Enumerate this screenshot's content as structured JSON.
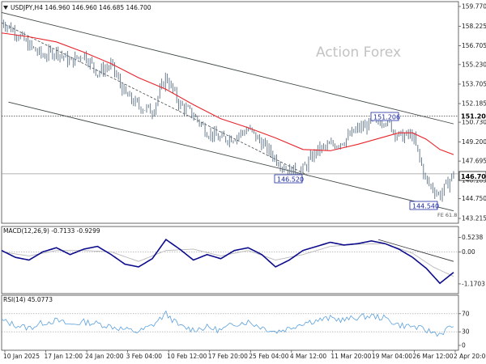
{
  "header": {
    "symbol_line": "USDJPY,H4  146.960 146.960 146.685 146.700",
    "watermark": "Action Forex"
  },
  "annotations": {
    "high_label": "151.206",
    "low1_label": "146.520",
    "low2_label": "144.540",
    "fe_label": "FE 61.8",
    "current_price_tag": "146.700",
    "resistance_tag": "151.200"
  },
  "colors": {
    "price": "#5c7186",
    "ema": "#e8242b",
    "channel": "#404848",
    "macd": "#0c0c8c",
    "signal": "#b9b9b9",
    "rsi": "#5aa0dc",
    "annotation": "#1c2aa0"
  },
  "chart_data": [
    {
      "type": "line",
      "title": "USDJPY,H4",
      "y_ticks": [
        "159.770",
        "158.225",
        "156.705",
        "155.230",
        "153.705",
        "152.185",
        "150.730",
        "149.200",
        "147.695",
        "146.185",
        "144.750",
        "143.215"
      ],
      "x_ticks": [
        "10 Jan 2025",
        "17 Jan 12:00",
        "24 Jan 20:00",
        "3 Feb 04:00",
        "10 Feb 12:00",
        "17 Feb 20:00",
        "25 Feb 04:00",
        "4 Mar 12:00",
        "11 Mar 20:00",
        "19 Mar 04:00",
        "26 Mar 12:00",
        "2 Apr 20:00"
      ],
      "ylim": [
        143.215,
        159.77
      ],
      "series": [
        {
          "name": "USDJPY",
          "x": [
            0,
            4,
            8,
            12,
            16,
            20,
            24,
            28,
            32,
            36,
            40,
            44,
            48,
            52,
            56,
            60,
            64,
            68,
            72,
            76,
            80,
            84,
            88,
            92,
            96,
            100,
            104,
            108,
            112,
            116,
            120,
            124,
            128,
            132
          ],
          "values": [
            158.6,
            157.8,
            156.7,
            155.9,
            156.3,
            155.4,
            156.1,
            154.6,
            155.2,
            152.9,
            152.0,
            151.6,
            154.3,
            152.1,
            151.3,
            150.0,
            149.4,
            149.6,
            150.2,
            149.1,
            147.9,
            146.9,
            147.0,
            148.5,
            148.9,
            149.3,
            150.2,
            150.6,
            151.0,
            149.6,
            149.7,
            146.1,
            145.0,
            146.7
          ]
        },
        {
          "name": "EMA",
          "x": [
            0,
            8,
            16,
            24,
            32,
            40,
            48,
            56,
            64,
            72,
            80,
            88,
            96,
            104,
            112,
            116,
            120,
            124,
            128,
            132
          ],
          "values": [
            157.7,
            157.4,
            157.0,
            156.2,
            155.3,
            154.2,
            153.3,
            152.1,
            151.0,
            150.3,
            149.5,
            148.6,
            148.5,
            149.0,
            149.6,
            149.9,
            149.9,
            149.4,
            148.6,
            148.2
          ]
        }
      ],
      "channel": {
        "upper": {
          "x": [
            0,
            132
          ],
          "values": [
            159.3,
            150.6
          ]
        },
        "lower": {
          "x": [
            2,
            132
          ],
          "values": [
            152.3,
            143.8
          ]
        },
        "dashed": {
          "x": [
            0,
            90
          ],
          "values": [
            158.5,
            146.5
          ]
        },
        "horizontal": [
          151.2,
          146.7
        ]
      }
    },
    {
      "type": "line",
      "title": "MACD(12,26,9) -0.7133 -0.9299",
      "y_ticks": [
        "0.5238",
        "0.00",
        "-1.1703"
      ],
      "ylim": [
        -1.35,
        0.75
      ],
      "series": [
        {
          "name": "MACD",
          "x": [
            0,
            4,
            8,
            12,
            16,
            20,
            24,
            28,
            32,
            36,
            40,
            44,
            48,
            52,
            56,
            60,
            64,
            68,
            72,
            76,
            80,
            84,
            88,
            92,
            96,
            100,
            104,
            108,
            112,
            116,
            120,
            124,
            128,
            132
          ],
          "values": [
            0.05,
            -0.2,
            -0.3,
            0.0,
            0.15,
            -0.1,
            0.1,
            0.2,
            -0.1,
            -0.45,
            -0.55,
            -0.25,
            0.45,
            0.1,
            -0.3,
            -0.1,
            -0.25,
            0.05,
            0.15,
            -0.1,
            -0.55,
            -0.3,
            0.05,
            0.2,
            0.35,
            0.25,
            0.3,
            0.4,
            0.3,
            0.1,
            -0.2,
            -0.6,
            -1.15,
            -0.75
          ]
        },
        {
          "name": "Signal",
          "x": [
            0,
            8,
            16,
            24,
            32,
            40,
            48,
            56,
            64,
            72,
            80,
            88,
            96,
            104,
            112,
            120,
            126,
            132
          ],
          "values": [
            0.0,
            -0.15,
            0.05,
            0.05,
            0.0,
            -0.35,
            0.05,
            0.1,
            -0.15,
            0.05,
            -0.3,
            -0.1,
            0.2,
            0.28,
            0.3,
            -0.05,
            -0.55,
            -0.9
          ]
        }
      ]
    },
    {
      "type": "line",
      "title": "RSI(14) 45.0773",
      "y_ticks": [
        "70",
        "30",
        "0"
      ],
      "ylim": [
        0,
        100
      ],
      "series": [
        {
          "name": "RSI",
          "x": [
            0,
            4,
            8,
            12,
            16,
            20,
            24,
            28,
            32,
            36,
            40,
            44,
            48,
            52,
            56,
            60,
            64,
            68,
            72,
            76,
            80,
            84,
            88,
            92,
            96,
            100,
            104,
            108,
            112,
            116,
            120,
            124,
            128,
            132
          ],
          "values": [
            55,
            45,
            38,
            50,
            55,
            45,
            52,
            48,
            42,
            35,
            30,
            44,
            70,
            42,
            35,
            40,
            33,
            48,
            52,
            40,
            30,
            38,
            50,
            55,
            60,
            56,
            62,
            65,
            60,
            45,
            42,
            33,
            25,
            45
          ]
        }
      ]
    }
  ]
}
